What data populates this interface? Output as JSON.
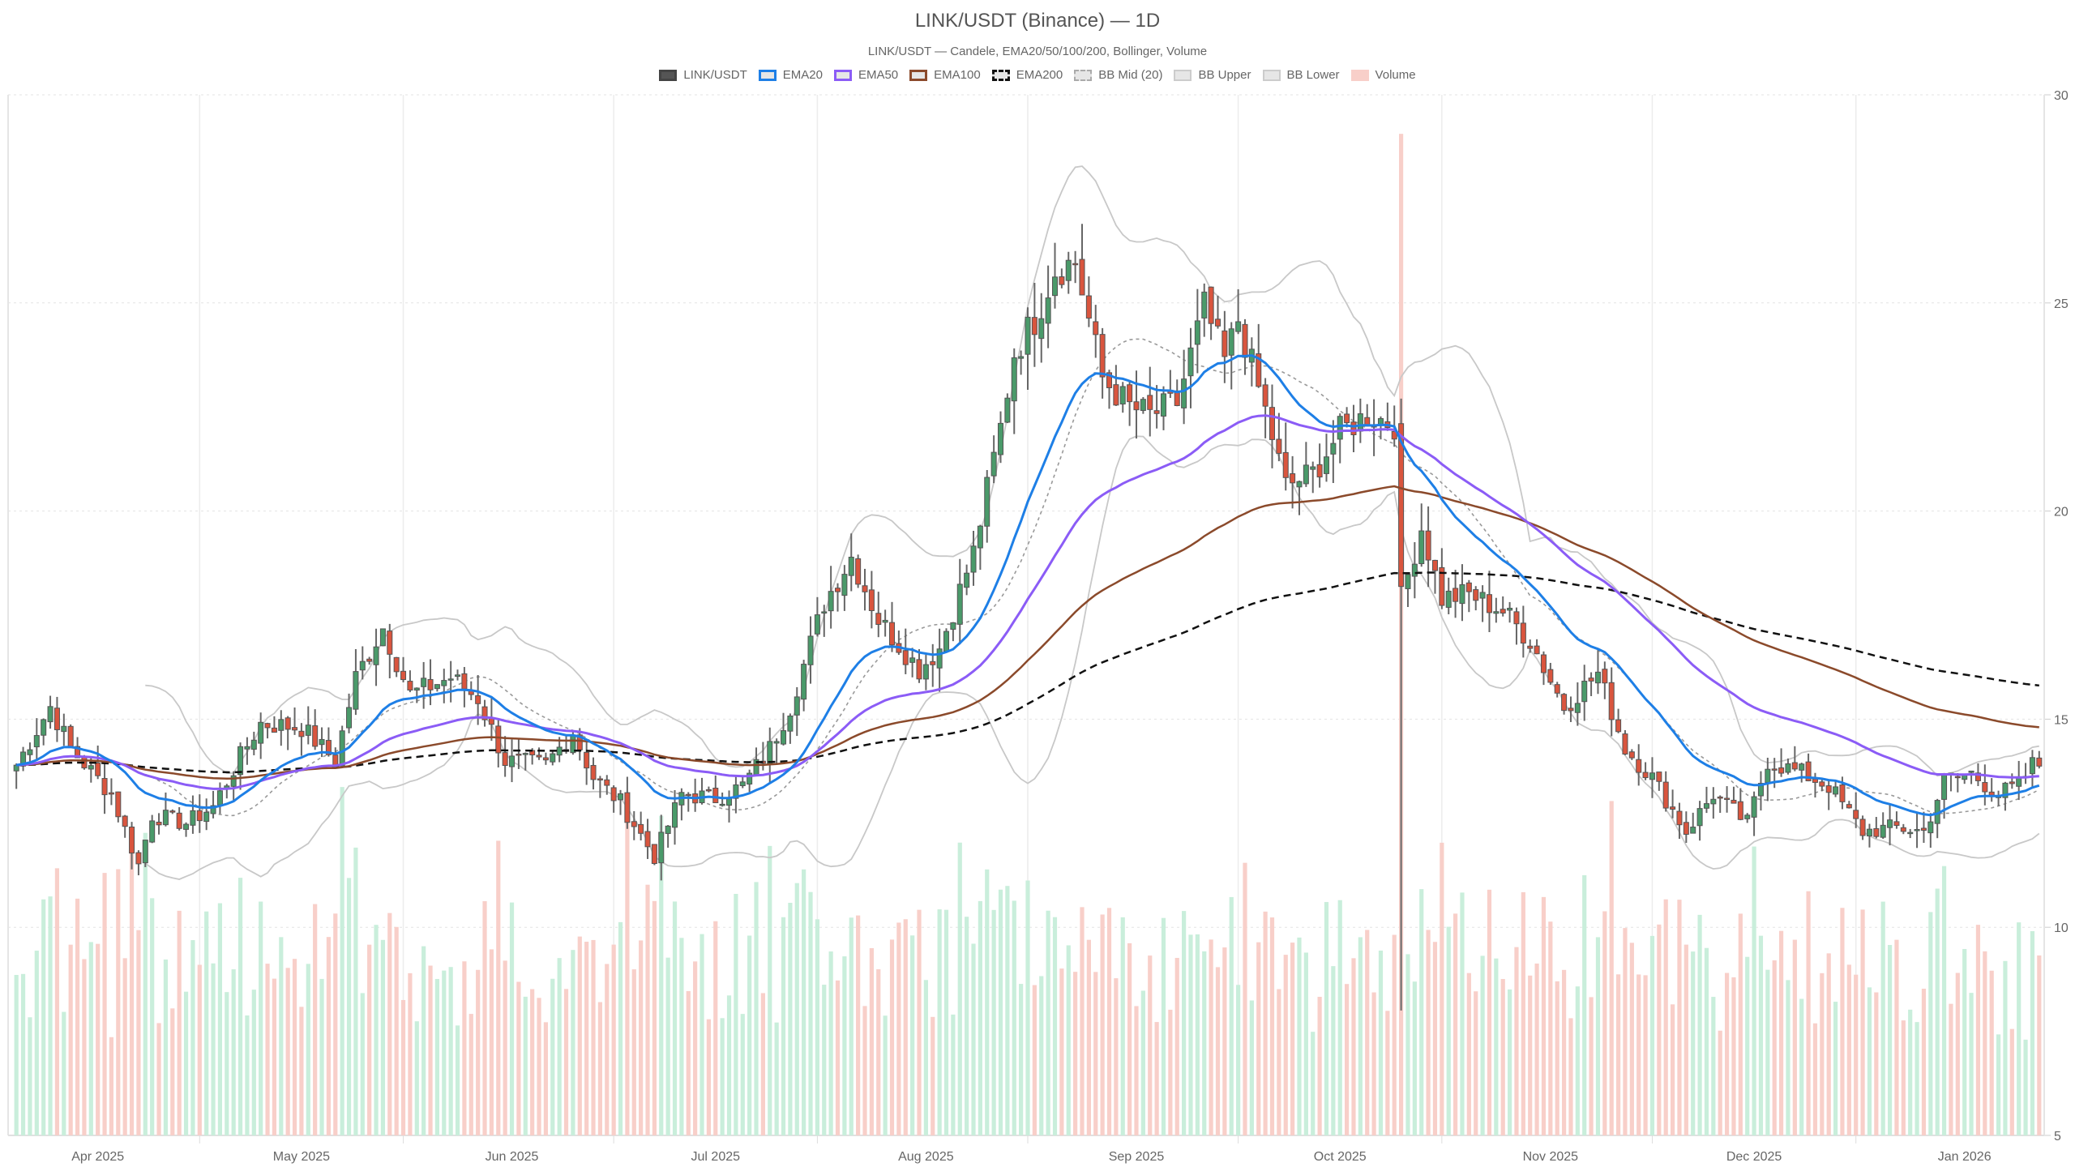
{
  "header": {
    "title": "LINK/USDT (Binance) — 1D",
    "subtitle": "LINK/USDT — Candele, EMA20/50/100/200, Bollinger, Volume"
  },
  "legend": [
    {
      "label": "LINK/USDT",
      "fill": "#555555",
      "border": "#444444",
      "style": "solid"
    },
    {
      "label": "EMA20",
      "fill": "#e6e6e6",
      "border": "#1e7fe6",
      "style": "solid"
    },
    {
      "label": "EMA50",
      "fill": "#e6e6e6",
      "border": "#8b5cf6",
      "style": "solid"
    },
    {
      "label": "EMA100",
      "fill": "#e6e6e6",
      "border": "#8b4a2b",
      "style": "solid"
    },
    {
      "label": "EMA200",
      "fill": "#e6e6e6",
      "border": "#111111",
      "style": "dashed"
    },
    {
      "label": "BB Mid (20)",
      "fill": "#e6e6e6",
      "border": "#aaaaaa",
      "style": "dashed"
    },
    {
      "label": "BB Upper",
      "fill": "#e6e6e6",
      "border": "#cccccc",
      "style": "solid"
    },
    {
      "label": "BB Lower",
      "fill": "#e6e6e6",
      "border": "#cccccc",
      "style": "solid"
    },
    {
      "label": "Volume",
      "fill": "#f8cfc9",
      "border": "#f8cfc9",
      "style": "solid"
    }
  ],
  "colors": {
    "up": "#4a9a6a",
    "down": "#d9553e",
    "wick": "#666666",
    "vol_up": "#c9eedb",
    "vol_down": "#f8cfc9",
    "ema20": "#1e7fe6",
    "ema50": "#8b5cf6",
    "ema100": "#8b4a2b",
    "ema200": "#111111",
    "bb": "#c8c8c8",
    "bb_mid": "#999999",
    "grid": "#e8e8e8"
  },
  "chart_data": {
    "type": "candlestick",
    "title": "LINK/USDT (Binance) — 1D",
    "subtitle": "LINK/USDT — Candele, EMA20/50/100/200, Bollinger, Volume",
    "xlabel": "",
    "ylabel": "",
    "ylim": [
      5,
      30
    ],
    "y_ticks": [
      5,
      10,
      15,
      20,
      25,
      30
    ],
    "y_axis_position": "right",
    "x_tick_labels": [
      "Apr 2025",
      "May 2025",
      "Jun 2025",
      "Jul 2025",
      "Aug 2025",
      "Sep 2025",
      "Oct 2025",
      "Nov 2025",
      "Dec 2025",
      "Jan 2026"
    ],
    "x_range": [
      "2025-03-20",
      "2026-01-12"
    ],
    "legend_position": "top",
    "grid": true,
    "series": [
      {
        "name": "LINK/USDT",
        "type": "candlestick"
      },
      {
        "name": "EMA20",
        "type": "line"
      },
      {
        "name": "EMA50",
        "type": "line"
      },
      {
        "name": "EMA100",
        "type": "line"
      },
      {
        "name": "EMA200",
        "type": "line",
        "dash": true
      },
      {
        "name": "BB Mid (20)",
        "type": "line",
        "dash": true
      },
      {
        "name": "BB Upper",
        "type": "line"
      },
      {
        "name": "BB Lower",
        "type": "line"
      },
      {
        "name": "Volume",
        "type": "bar",
        "overlay": true
      }
    ],
    "close_keypoints": [
      [
        "2025-03-20",
        13.9
      ],
      [
        "2025-03-25",
        15.3
      ],
      [
        "2025-03-28",
        14.3
      ],
      [
        "2025-04-03",
        13.2
      ],
      [
        "2025-04-07",
        11.5
      ],
      [
        "2025-04-09",
        12.7
      ],
      [
        "2025-04-14",
        12.5
      ],
      [
        "2025-04-18",
        12.9
      ],
      [
        "2025-04-22",
        14.1
      ],
      [
        "2025-04-25",
        14.9
      ],
      [
        "2025-05-01",
        14.8
      ],
      [
        "2025-05-06",
        14.0
      ],
      [
        "2025-05-09",
        16.0
      ],
      [
        "2025-05-13",
        17.2
      ],
      [
        "2025-05-17",
        15.6
      ],
      [
        "2025-05-23",
        16.0
      ],
      [
        "2025-05-27",
        15.5
      ],
      [
        "2025-05-31",
        14.0
      ],
      [
        "2025-06-06",
        13.9
      ],
      [
        "2025-06-10",
        14.7
      ],
      [
        "2025-06-13",
        13.6
      ],
      [
        "2025-06-17",
        13.0
      ],
      [
        "2025-06-22",
        11.7
      ],
      [
        "2025-06-26",
        13.2
      ],
      [
        "2025-07-01",
        13.1
      ],
      [
        "2025-07-05",
        13.4
      ],
      [
        "2025-07-09",
        14.3
      ],
      [
        "2025-07-12",
        15.3
      ],
      [
        "2025-07-17",
        17.8
      ],
      [
        "2025-07-21",
        18.9
      ],
      [
        "2025-07-25",
        17.4
      ],
      [
        "2025-07-31",
        16.2
      ],
      [
        "2025-08-03",
        16.7
      ],
      [
        "2025-08-08",
        19.0
      ],
      [
        "2025-08-12",
        22.0
      ],
      [
        "2025-08-14",
        23.8
      ],
      [
        "2025-08-17",
        24.6
      ],
      [
        "2025-08-20",
        25.8
      ],
      [
        "2025-08-23",
        26.0
      ],
      [
        "2025-08-27",
        23.2
      ],
      [
        "2025-08-31",
        22.5
      ],
      [
        "2025-09-03",
        22.3
      ],
      [
        "2025-09-07",
        22.6
      ],
      [
        "2025-09-11",
        24.9
      ],
      [
        "2025-09-14",
        23.6
      ],
      [
        "2025-09-16",
        24.6
      ],
      [
        "2025-09-20",
        22.4
      ],
      [
        "2025-09-23",
        20.6
      ],
      [
        "2025-09-27",
        20.9
      ],
      [
        "2025-10-01",
        21.9
      ],
      [
        "2025-10-05",
        22.3
      ],
      [
        "2025-10-09",
        22.1
      ],
      [
        "2025-10-10",
        17.9
      ],
      [
        "2025-10-13",
        19.6
      ],
      [
        "2025-10-16",
        17.9
      ],
      [
        "2025-10-20",
        18.0
      ],
      [
        "2025-10-25",
        17.6
      ],
      [
        "2025-10-29",
        16.9
      ],
      [
        "2025-11-03",
        15.3
      ],
      [
        "2025-11-08",
        16.1
      ],
      [
        "2025-11-12",
        14.3
      ],
      [
        "2025-11-16",
        13.6
      ],
      [
        "2025-11-21",
        12.3
      ],
      [
        "2025-11-25",
        13.2
      ],
      [
        "2025-11-30",
        12.5
      ],
      [
        "2025-12-03",
        14.0
      ],
      [
        "2025-12-08",
        13.7
      ],
      [
        "2025-12-12",
        13.4
      ],
      [
        "2025-12-17",
        12.3
      ],
      [
        "2025-12-22",
        12.4
      ],
      [
        "2025-12-26",
        12.3
      ],
      [
        "2025-12-29",
        13.5
      ],
      [
        "2026-01-02",
        13.7
      ],
      [
        "2026-01-06",
        13.2
      ],
      [
        "2026-01-09",
        13.4
      ],
      [
        "2026-01-11",
        13.9
      ],
      [
        "2026-01-12",
        13.9
      ]
    ],
    "indicator_end_values": {
      "EMA20": 13.4,
      "EMA50": 13.6,
      "EMA100": 14.8,
      "EMA200": 15.8,
      "BB Upper": 14.3,
      "BB Lower": 11.9
    },
    "volume_note": "Volume bars overlaid in lower region (relative scale); largest spike around 2025-10-10"
  }
}
